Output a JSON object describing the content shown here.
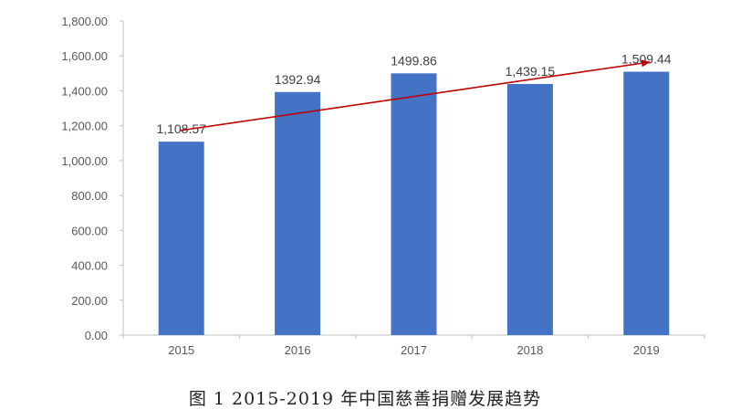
{
  "caption": "图 1 2015-2019 年中国慈善捐赠发展趋势",
  "colors": {
    "bar": "#4472C4",
    "trend_arrow": "#C00000",
    "axis": "#BFBFBF",
    "tick_text": "#595959"
  },
  "chart_data": {
    "type": "bar",
    "title": "图 1 2015-2019 年中国慈善捐赠发展趋势",
    "xlabel": "",
    "ylabel": "",
    "categories": [
      "2015",
      "2016",
      "2017",
      "2018",
      "2019"
    ],
    "values": [
      1108.57,
      1392.94,
      1499.86,
      1439.15,
      1509.44
    ],
    "data_labels": [
      "1,108.57",
      "1392.94",
      "1499.86",
      "1,439.15",
      "1,509.44"
    ],
    "ylim": [
      0,
      1800
    ],
    "yticks": [
      "0.00",
      "200.00",
      "400.00",
      "600.00",
      "800.00",
      "1,000.00",
      "1,200.00",
      "1,400.00",
      "1,600.00",
      "1,800.00"
    ],
    "grid": false,
    "legend": null,
    "annotations": [
      {
        "type": "arrow",
        "description": "upward trend arrow from 2015 to 2019",
        "color": "#C00000"
      }
    ]
  }
}
